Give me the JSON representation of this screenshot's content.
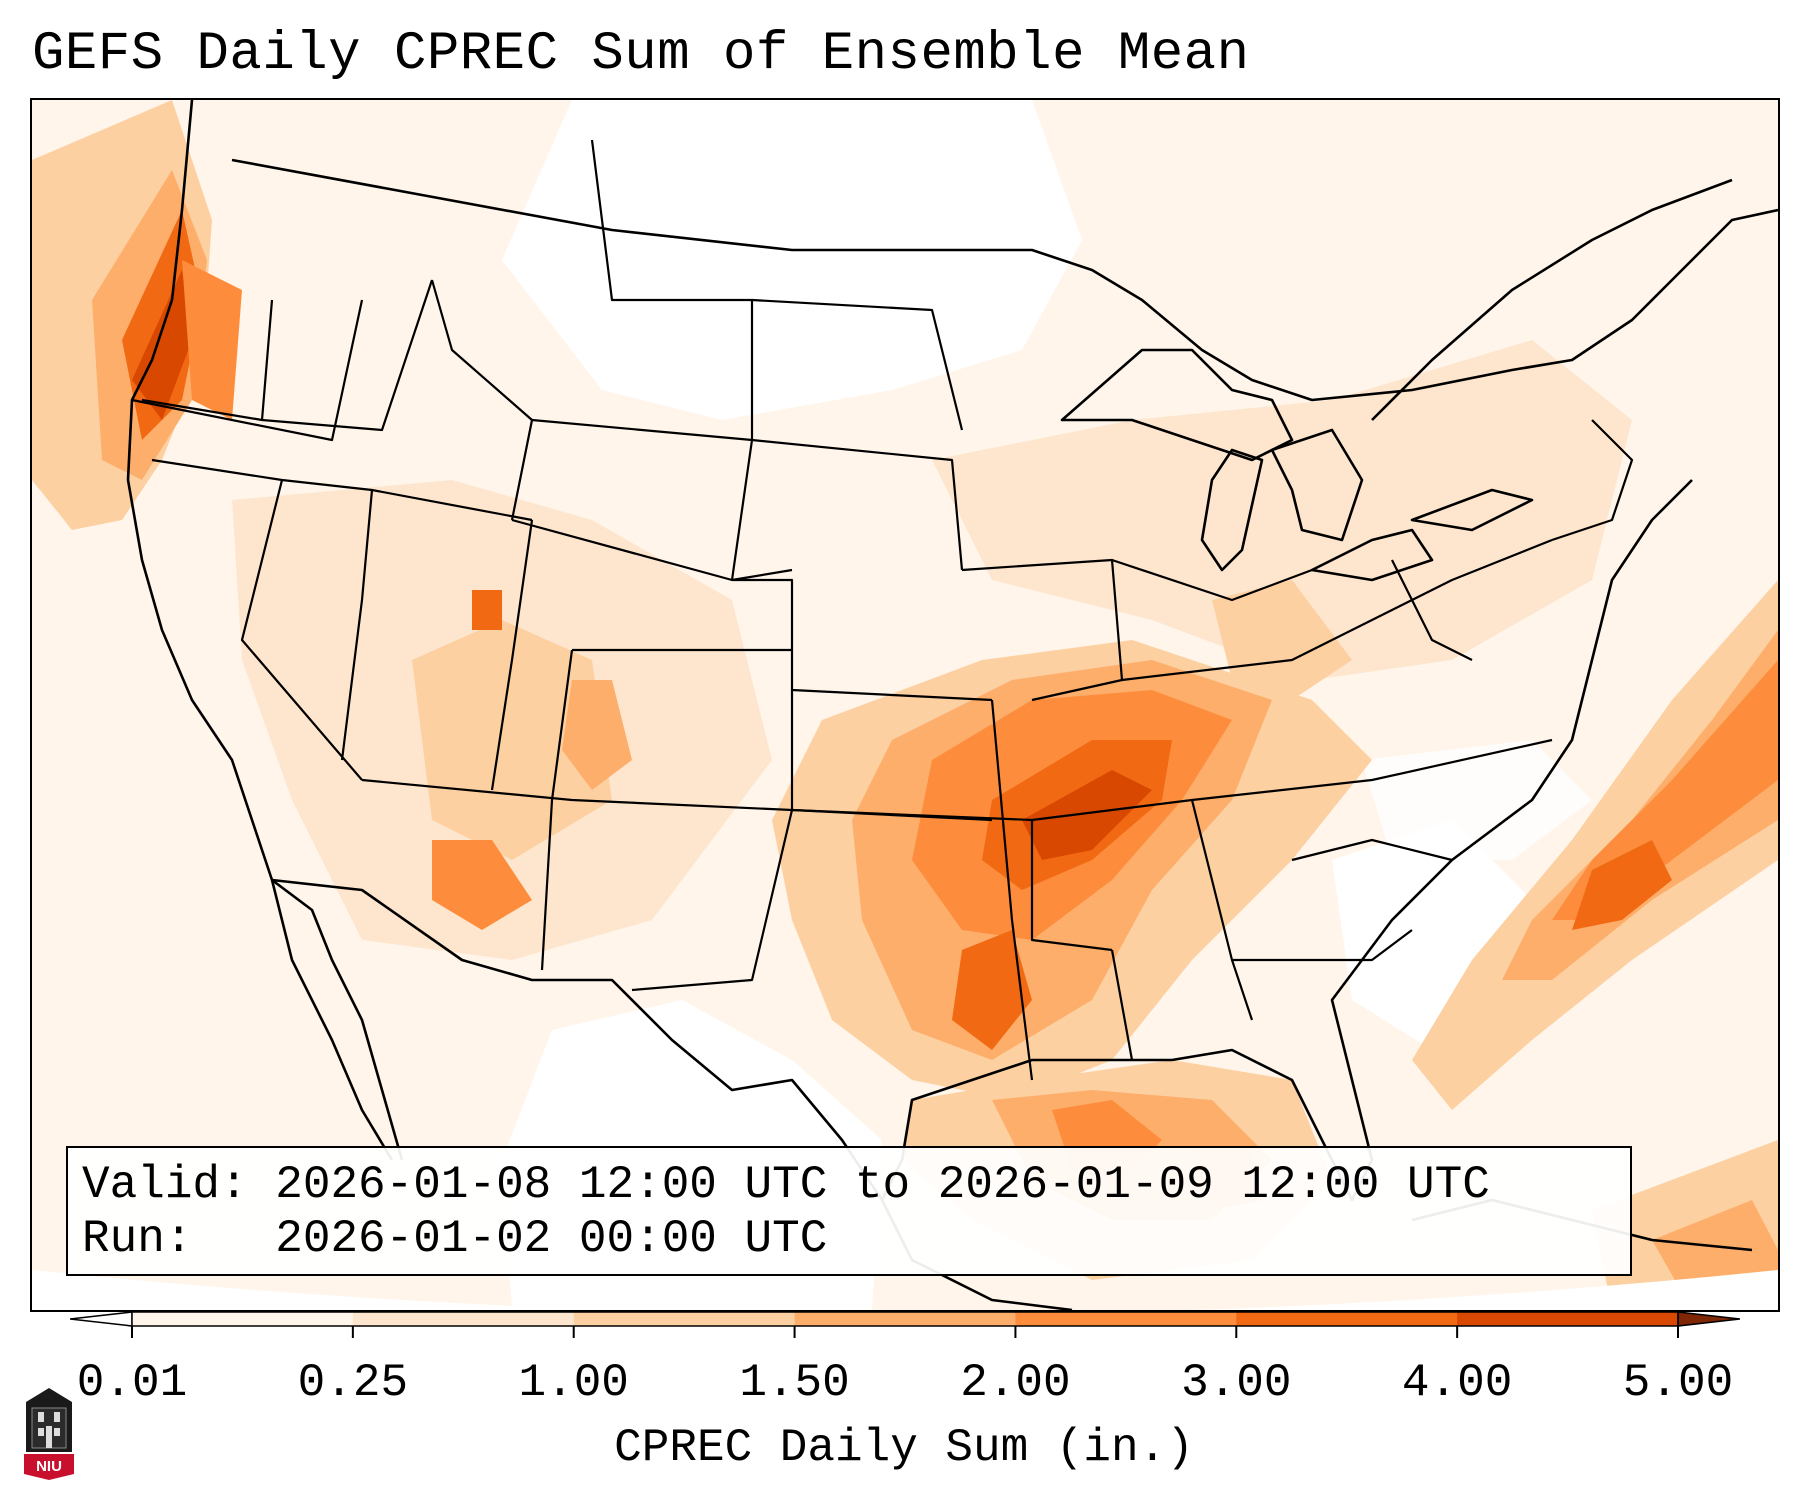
{
  "title": "GEFS Daily CPREC Sum of Ensemble Mean",
  "info": {
    "valid_line": "Valid: 2026-01-08 12:00 UTC to 2026-01-09 12:00 UTC",
    "run_line": "Run:   2026-01-02 00:00 UTC"
  },
  "colorbar": {
    "label": "CPREC Daily Sum (in.)",
    "ticks": [
      "0.01",
      "0.25",
      "1.00",
      "1.50",
      "2.00",
      "3.00",
      "4.00",
      "5.00"
    ],
    "colors": [
      "#fff5eb",
      "#fee6ce",
      "#fdd0a2",
      "#fdae6b",
      "#fd8d3c",
      "#f16913",
      "#d94801",
      "#a63603"
    ],
    "under_color": "#ffffff",
    "over_color": "#7f2704"
  },
  "logo": {
    "text": "NIU",
    "color": "#c8102e"
  },
  "map": {
    "region": "CONUS",
    "highlights": [
      {
        "area": "Mid-Mississippi and Tennessee Valleys",
        "level": "3.00"
      },
      {
        "area": "Pacific Northwest coast",
        "level": "4.00"
      },
      {
        "area": "Western Atlantic offshore",
        "level": "3.00"
      },
      {
        "area": "Central Gulf of Mexico",
        "level": "2.00"
      }
    ]
  }
}
